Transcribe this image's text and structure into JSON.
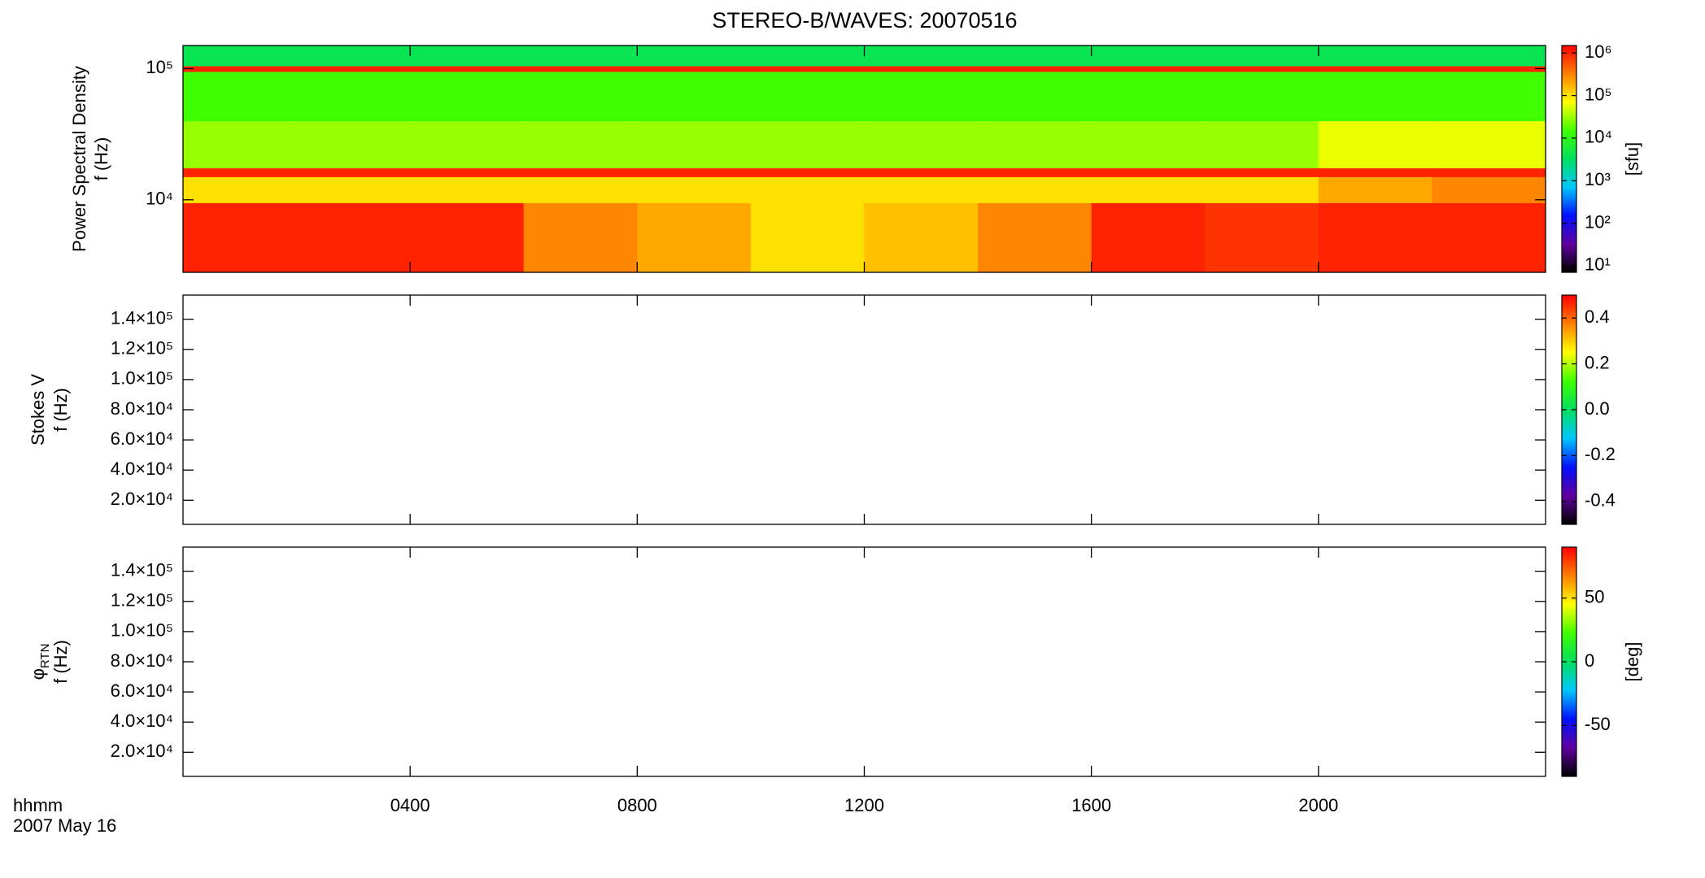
{
  "chart_data": [
    {
      "type": "heatmap",
      "title": "STEREO-B/WAVES: 20070516",
      "ylabel": [
        "Power Spectral Density",
        "f (Hz)"
      ],
      "ylim": [
        2800,
        150000
      ],
      "ylog": true,
      "yticks": [
        {
          "value": 10000,
          "label": "10⁴"
        },
        {
          "value": 100000,
          "label": "10⁵"
        }
      ],
      "x_edges": [
        0,
        2,
        4,
        6,
        8,
        10,
        12,
        14,
        16,
        18,
        20,
        22,
        24
      ],
      "y_edges": [
        2800,
        9500,
        15000,
        17500,
        40000,
        95000,
        105000,
        150000
      ],
      "z": [
        [
          1000000,
          1000000,
          1000000,
          300000,
          200000,
          100000,
          150000,
          300000,
          1000000,
          800000,
          1000000,
          1000000
        ],
        [
          100000,
          100000,
          100000,
          100000,
          100000,
          100000,
          100000,
          100000,
          100000,
          100000,
          200000,
          300000
        ],
        [
          1000000,
          1000000,
          1000000,
          1000000,
          1000000,
          1000000,
          1000000,
          1000000,
          1000000,
          1000000,
          1000000,
          1000000
        ],
        [
          30000,
          30000,
          30000,
          30000,
          30000,
          30000,
          30000,
          30000,
          30000,
          30000,
          60000,
          60000
        ],
        [
          15000,
          15000,
          15000,
          15000,
          15000,
          15000,
          15000,
          15000,
          15000,
          15000,
          15000,
          15000
        ],
        [
          1000000,
          1000000,
          1000000,
          1000000,
          1000000,
          1000000,
          1000000,
          1000000,
          1000000,
          1000000,
          1000000,
          1000000
        ],
        [
          4000,
          4000,
          4000,
          4000,
          4000,
          4000,
          4000,
          4000,
          4000,
          4000,
          4000,
          4000
        ]
      ],
      "clim": [
        7,
        1500000
      ],
      "clog": true,
      "cticks": [
        {
          "value": 10,
          "label": "10¹"
        },
        {
          "value": 100,
          "label": "10²"
        },
        {
          "value": 1000,
          "label": "10³"
        },
        {
          "value": 10000,
          "label": "10⁴"
        },
        {
          "value": 100000,
          "label": "10⁵"
        },
        {
          "value": 1000000,
          "label": "10⁶"
        }
      ],
      "clabel": "[sfu]",
      "colormap": [
        "#000000",
        "#6000a0",
        "#0010ff",
        "#00c8ff",
        "#00e060",
        "#40ff00",
        "#ffff00",
        "#ff8000",
        "#ff0000"
      ]
    },
    {
      "type": "heatmap",
      "ylabel": [
        "Stokes V",
        "f (Hz)"
      ],
      "ylim": [
        4000,
        156000
      ],
      "yticks": [
        {
          "value": 20000,
          "label": "2.0×10⁴"
        },
        {
          "value": 40000,
          "label": "4.0×10⁴"
        },
        {
          "value": 60000,
          "label": "6.0×10⁴"
        },
        {
          "value": 80000,
          "label": "8.0×10⁴"
        },
        {
          "value": 100000,
          "label": "1.0×10⁵"
        },
        {
          "value": 120000,
          "label": "1.2×10⁵"
        },
        {
          "value": 140000,
          "label": "1.4×10⁵"
        }
      ],
      "clim": [
        -0.5,
        0.5
      ],
      "cticks": [
        -0.4,
        -0.2,
        {
          "value": 0,
          "label": "0.0"
        },
        0.2,
        0.4
      ],
      "colormap": [
        "#000000",
        "#6000a0",
        "#0010ff",
        "#00c8ff",
        "#00e060",
        "#40ff00",
        "#ffff00",
        "#ff8000",
        "#ff0000"
      ]
    },
    {
      "type": "heatmap",
      "ylabel": [
        "φ",
        "f (Hz)"
      ],
      "ylabel_sub": "RTN",
      "ylim": [
        4000,
        156000
      ],
      "yticks": [
        {
          "value": 20000,
          "label": "2.0×10⁴"
        },
        {
          "value": 40000,
          "label": "4.0×10⁴"
        },
        {
          "value": 60000,
          "label": "6.0×10⁴"
        },
        {
          "value": 80000,
          "label": "8.0×10⁴"
        },
        {
          "value": 100000,
          "label": "1.0×10⁵"
        },
        {
          "value": 120000,
          "label": "1.2×10⁵"
        },
        {
          "value": 140000,
          "label": "1.4×10⁵"
        }
      ],
      "clim": [
        -90,
        90
      ],
      "cticks": [
        -50,
        0,
        50
      ],
      "clabel": "[deg]",
      "colormap": [
        "#000000",
        "#6000a0",
        "#0010ff",
        "#00c8ff",
        "#00e060",
        "#40ff00",
        "#ffff00",
        "#ff8000",
        "#ff0000"
      ],
      "xlim": [
        0,
        24
      ],
      "xticks": [
        {
          "value": 4,
          "label": "0400"
        },
        {
          "value": 8,
          "label": "0800"
        },
        {
          "value": 12,
          "label": "1200"
        },
        {
          "value": 16,
          "label": "1600"
        },
        {
          "value": 20,
          "label": "2000"
        }
      ],
      "xlabel": "hhmm",
      "date": "2007 May 16"
    }
  ]
}
